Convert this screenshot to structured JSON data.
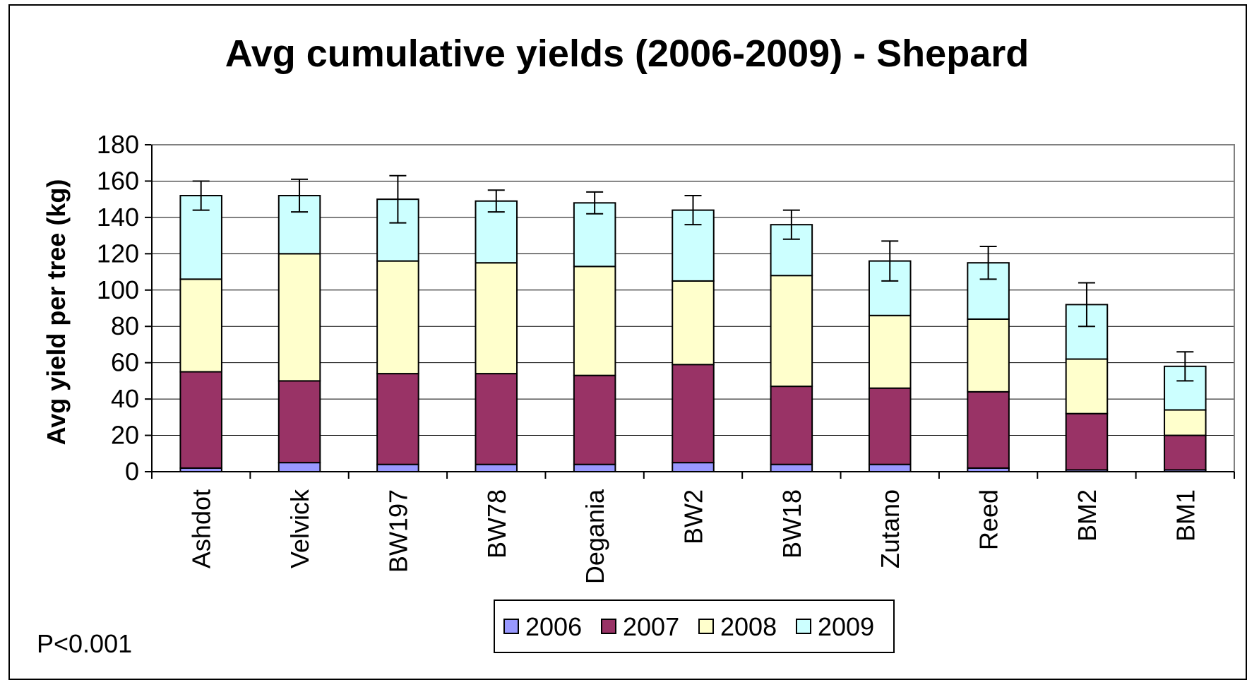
{
  "chart_data": {
    "type": "bar",
    "stacked": true,
    "title": "Avg cumulative yields (2006-2009) - Shepard",
    "xlabel": "",
    "ylabel": "Avg yield per tree (kg)",
    "ylim": [
      0,
      180
    ],
    "yticks": [
      0,
      20,
      40,
      60,
      80,
      100,
      120,
      140,
      160,
      180
    ],
    "grid": true,
    "legend_position": "bottom",
    "categories": [
      "Ashdot",
      "Velvick",
      "BW197",
      "BW78",
      "Degania",
      "BW2",
      "BW18",
      "Zutano",
      "Reed",
      "BM2",
      "BM1"
    ],
    "series": [
      {
        "name": "2006",
        "color": "#9999ff",
        "values": [
          2,
          5,
          4,
          4,
          4,
          5,
          4,
          4,
          2,
          1,
          1
        ]
      },
      {
        "name": "2007",
        "color": "#993366",
        "values": [
          53,
          45,
          50,
          50,
          49,
          54,
          43,
          42,
          42,
          31,
          19
        ]
      },
      {
        "name": "2008",
        "color": "#ffffcc",
        "values": [
          51,
          70,
          62,
          61,
          60,
          46,
          61,
          40,
          40,
          30,
          14
        ]
      },
      {
        "name": "2009",
        "color": "#ccffff",
        "values": [
          46,
          32,
          34,
          34,
          35,
          39,
          28,
          30,
          31,
          30,
          24
        ]
      }
    ],
    "error_bars": [
      8,
      9,
      13,
      6,
      6,
      8,
      8,
      11,
      9,
      12,
      8
    ],
    "annotations": [
      "P<0.001"
    ]
  }
}
